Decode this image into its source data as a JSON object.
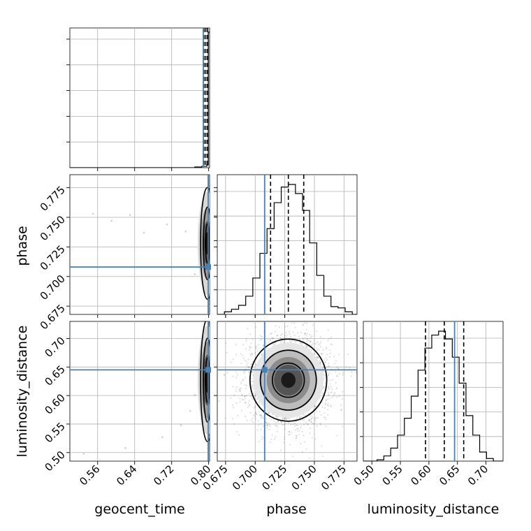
{
  "chart_data": {
    "type": "corner",
    "parameters": [
      "geocent_time",
      "phase",
      "luminosity_distance"
    ],
    "axis_labels": [
      "geocent_time",
      "phase",
      "luminosity_distance"
    ],
    "truths": {
      "geocent_time": 0.799,
      "phase": 0.708,
      "luminosity_distance": 0.645
    },
    "truth_color": "#4682b4",
    "ranges": {
      "geocent_time": [
        0.5,
        0.802
      ],
      "phase": [
        0.668,
        0.786
      ],
      "luminosity_distance": [
        0.485,
        0.73
      ]
    },
    "ticks": {
      "geocent_time": [
        "0.56",
        "0.64",
        "0.72",
        "0.80"
      ],
      "phase": [
        "0.675",
        "0.700",
        "0.725",
        "0.750",
        "0.775"
      ],
      "luminosity_distance": [
        "0.50",
        "0.55",
        "0.60",
        "0.65",
        "0.70"
      ]
    },
    "quantiles": {
      "geocent_time": [
        0.7995,
        0.8,
        0.8005
      ],
      "phase": [
        0.713,
        0.728,
        0.741
      ],
      "luminosity_distance": [
        0.594,
        0.627,
        0.661
      ]
    },
    "histograms": {
      "phase": {
        "edges": [
          0.668,
          0.674,
          0.68,
          0.686,
          0.692,
          0.698,
          0.704,
          0.71,
          0.716,
          0.722,
          0.728,
          0.734,
          0.74,
          0.746,
          0.752,
          0.758,
          0.764,
          0.77,
          0.776,
          0.782,
          0.786
        ],
        "counts": [
          0.0,
          0.02,
          0.04,
          0.07,
          0.14,
          0.28,
          0.47,
          0.66,
          0.86,
          0.98,
          1.0,
          0.93,
          0.8,
          0.55,
          0.3,
          0.14,
          0.06,
          0.05,
          0.02,
          0.0
        ]
      },
      "luminosity_distance": {
        "edges": [
          0.485,
          0.497,
          0.509,
          0.521,
          0.533,
          0.545,
          0.557,
          0.569,
          0.581,
          0.593,
          0.605,
          0.617,
          0.629,
          0.641,
          0.653,
          0.665,
          0.677,
          0.689,
          0.701,
          0.713,
          0.73
        ],
        "counts": [
          0.0,
          0.0,
          0.01,
          0.04,
          0.1,
          0.2,
          0.33,
          0.5,
          0.7,
          0.87,
          0.97,
          1.0,
          0.94,
          0.8,
          0.6,
          0.35,
          0.2,
          0.07,
          0.02,
          0.0
        ]
      },
      "geocent_time": {
        "edges": [
          0.5,
          0.77,
          0.785,
          0.796,
          0.799,
          0.802
        ],
        "counts": [
          0.0,
          0.005,
          0.01,
          0.02,
          1.0
        ]
      }
    },
    "scatter_outliers": {
      "geocent_time_phase": [
        [
          0.55,
          0.753
        ],
        [
          0.59,
          0.747
        ],
        [
          0.63,
          0.752
        ],
        [
          0.66,
          0.737
        ],
        [
          0.75,
          0.738
        ],
        [
          0.77,
          0.702
        ],
        [
          0.71,
          0.744
        ]
      ],
      "geocent_time_luminosity_distance": [
        [
          0.53,
          0.498
        ],
        [
          0.62,
          0.508
        ],
        [
          0.7,
          0.527
        ],
        [
          0.74,
          0.548
        ],
        [
          0.76,
          0.573
        ],
        [
          0.77,
          0.601
        ]
      ]
    },
    "grid": true,
    "title": "",
    "legend": null
  }
}
